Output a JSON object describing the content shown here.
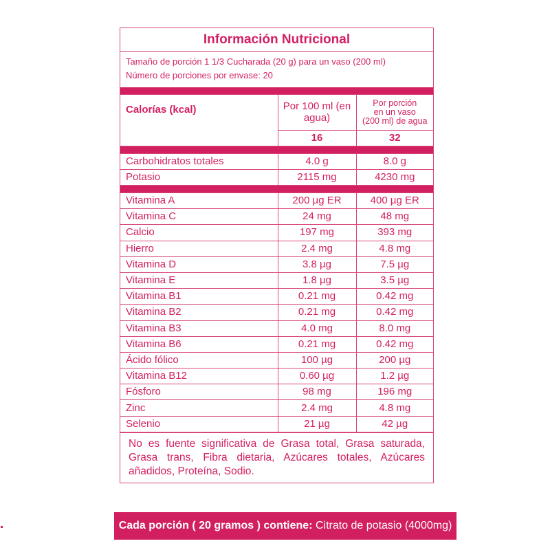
{
  "title": "Información Nutricional",
  "serving": {
    "size": "Tamaño de porción 1 1/3 Cucharada (20 g) para un vaso (200 ml)",
    "count": "Número de porciones por envase: 20"
  },
  "header": {
    "calories_label": "Calorías (kcal)",
    "col1": "Por 100 ml (en agua)",
    "col2_line1": "Por porción",
    "col2_line2": "en un vaso",
    "col2_line3": "(200 ml) de agua",
    "calories_col1": "16",
    "calories_col2": "32"
  },
  "macros": [
    {
      "name": "Carbohidratos totales",
      "per100": "4.0 g",
      "perServing": "8.0 g"
    },
    {
      "name": "Potasio",
      "per100": "2115 mg",
      "perServing": "4230 mg"
    }
  ],
  "micros": [
    {
      "name": "Vitamina A",
      "per100": "200 µg ER",
      "perServing": "400 µg ER"
    },
    {
      "name": "Vitamina C",
      "per100": "24 mg",
      "perServing": "48 mg"
    },
    {
      "name": "Calcio",
      "per100": "197 mg",
      "perServing": "393 mg"
    },
    {
      "name": "Hierro",
      "per100": "2.4 mg",
      "perServing": "4.8 mg"
    },
    {
      "name": "Vitamina D",
      "per100": "3.8 µg",
      "perServing": "7.5 µg"
    },
    {
      "name": "Vitamina E",
      "per100": "1.8 µg",
      "perServing": "3.5 µg"
    },
    {
      "name": "Vitamina B1",
      "per100": "0.21 mg",
      "perServing": "0.42 mg"
    },
    {
      "name": "Vitamina B2",
      "per100": "0.21 mg",
      "perServing": "0.42 mg"
    },
    {
      "name": "Vitamina B3",
      "per100": "4.0 mg",
      "perServing": "8.0 mg"
    },
    {
      "name": "Vitamina B6",
      "per100": "0.21 mg",
      "perServing": "0.42 mg"
    },
    {
      "name": "Ácido fólico",
      "per100": "100 µg",
      "perServing": "200 µg"
    },
    {
      "name": "Vitamina B12",
      "per100": "0.60 µg",
      "perServing": "1.2 µg"
    },
    {
      "name": "Fósforo",
      "per100": "98 mg",
      "perServing": "196 mg"
    },
    {
      "name": "Zinc",
      "per100": "2.4 mg",
      "perServing": "4.8 mg"
    },
    {
      "name": "Selenio",
      "per100": "21 µg",
      "perServing": "42 µg"
    }
  ],
  "note": "No es fuente significativa de Grasa total, Grasa saturada, Grasa trans, Fibra dietaria, Azúcares totales, Azúcares añadidos, Proteína, Sodio.",
  "footer": {
    "bold": "Cada porción ( 20 gramos ) contiene:",
    "text": " Citrato de potasio (4000mg)"
  },
  "colors": {
    "accent": "#d21f5f",
    "text": "#d31f62"
  }
}
